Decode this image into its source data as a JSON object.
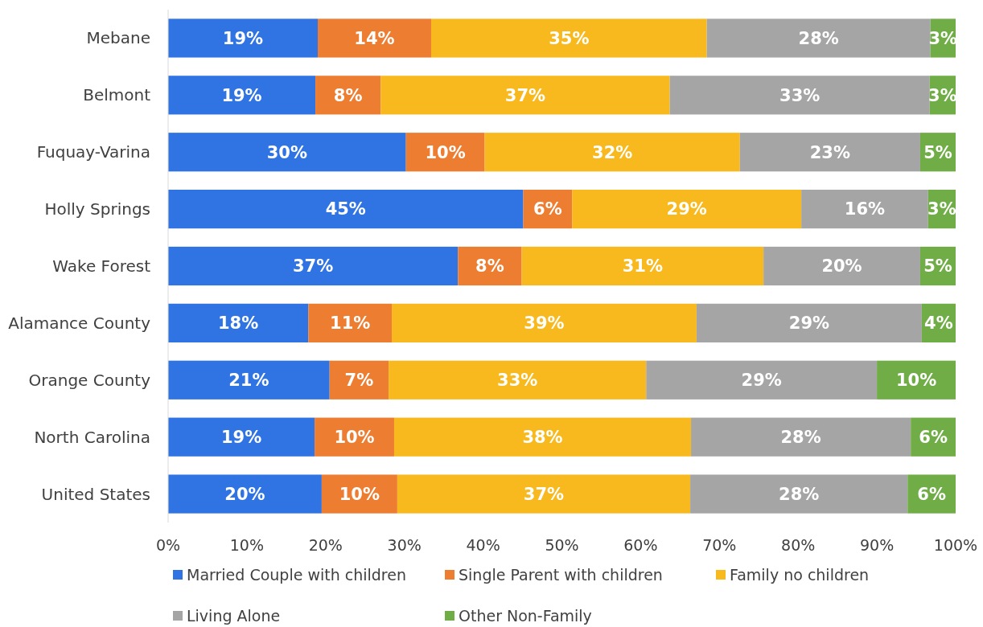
{
  "chart_data": {
    "type": "bar",
    "orientation": "horizontal",
    "stacked": true,
    "legend": "bottom",
    "grid": false,
    "categories": [
      "Mebane",
      "Belmont",
      "Fuquay-Varina",
      "Holly Springs",
      "Wake Forest",
      "Alamance County",
      "Orange County",
      "North Carolina",
      "United States"
    ],
    "xlim": [
      0,
      100
    ],
    "xticks": [
      {
        "value": 0,
        "label": "0%"
      },
      {
        "value": 10,
        "label": "10%"
      },
      {
        "value": 20,
        "label": "20%"
      },
      {
        "value": 30,
        "label": "30%"
      },
      {
        "value": 40,
        "label": "40%"
      },
      {
        "value": 50,
        "label": "50%"
      },
      {
        "value": 60,
        "label": "60%"
      },
      {
        "value": 70,
        "label": "70%"
      },
      {
        "value": 80,
        "label": "80%"
      },
      {
        "value": 90,
        "label": "90%"
      },
      {
        "value": 100,
        "label": "100%"
      }
    ],
    "series": [
      {
        "name": "Married Couple with children",
        "color": "#3074e3",
        "values": [
          19.0,
          18.7,
          30.2,
          45.1,
          36.8,
          17.8,
          20.5,
          18.6,
          19.5
        ],
        "value_labels": [
          "19%",
          "19%",
          "30%",
          "45%",
          "37%",
          "18%",
          "21%",
          "19%",
          "20%"
        ]
      },
      {
        "name": "Single Parent with children",
        "color": "#ed7d31",
        "values": [
          14.4,
          8.3,
          10.0,
          6.2,
          8.1,
          10.6,
          7.5,
          10.1,
          9.6
        ],
        "value_labels": [
          "14%",
          "8%",
          "10%",
          "6%",
          "8%",
          "11%",
          "7%",
          "10%",
          "10%"
        ]
      },
      {
        "name": "Family no children",
        "color": "#f8b91e",
        "values": [
          35.0,
          36.7,
          32.4,
          29.1,
          30.7,
          38.7,
          32.7,
          37.7,
          37.2
        ],
        "value_labels": [
          "35%",
          "37%",
          "32%",
          "29%",
          "31%",
          "39%",
          "33%",
          "38%",
          "37%"
        ]
      },
      {
        "name": "Living Alone",
        "color": "#a5a5a5",
        "values": [
          28.4,
          33.0,
          22.9,
          16.1,
          19.9,
          28.6,
          29.3,
          27.9,
          27.6
        ],
        "value_labels": [
          "28%",
          "33%",
          "23%",
          "16%",
          "20%",
          "29%",
          "29%",
          "28%",
          "28%"
        ]
      },
      {
        "name": "Other Non-Family",
        "color": "#70ad47",
        "values": [
          3.2,
          3.3,
          4.5,
          3.5,
          4.5,
          4.3,
          10.0,
          5.7,
          6.1
        ],
        "value_labels": [
          "3%",
          "3%",
          "5%",
          "3%",
          "5%",
          "4%",
          "10%",
          "6%",
          "6%"
        ]
      }
    ]
  }
}
